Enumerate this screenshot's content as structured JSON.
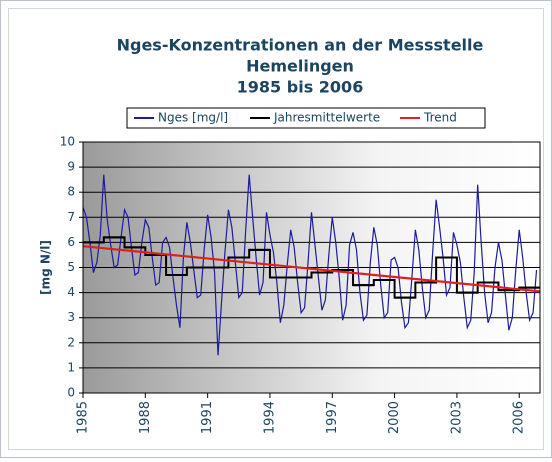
{
  "chart_data": {
    "type": "line",
    "title": [
      "Nges-Konzentrationen an der Messstelle",
      "Hemelingen",
      "1985 bis 2006"
    ],
    "y_label": "[mg N/l]",
    "xlim": [
      1985,
      2007
    ],
    "xticks": [
      1985,
      1988,
      1991,
      1994,
      1997,
      2000,
      2003,
      2006
    ],
    "ylim": [
      0,
      10
    ],
    "yticks": [
      0,
      1,
      2,
      3,
      4,
      5,
      6,
      7,
      8,
      9,
      10
    ],
    "grid": true,
    "legend": "top",
    "series": [
      {
        "name": "Nges [mg/l]",
        "color": "#1c1c9c",
        "x": [
          1985,
          1985.167,
          1985.333,
          1985.5,
          1985.667,
          1985.833,
          1986,
          1986.167,
          1986.333,
          1986.5,
          1986.667,
          1986.833,
          1987,
          1987.167,
          1987.333,
          1987.5,
          1987.667,
          1987.833,
          1988,
          1988.167,
          1988.333,
          1988.5,
          1988.667,
          1988.833,
          1989,
          1989.167,
          1989.333,
          1989.5,
          1989.667,
          1989.833,
          1990,
          1990.167,
          1990.333,
          1990.5,
          1990.667,
          1990.833,
          1991,
          1991.167,
          1991.333,
          1991.5,
          1991.667,
          1991.833,
          1992,
          1992.167,
          1992.333,
          1992.5,
          1992.667,
          1992.833,
          1993,
          1993.167,
          1993.333,
          1993.5,
          1993.667,
          1993.833,
          1994,
          1994.167,
          1994.333,
          1994.5,
          1994.667,
          1994.833,
          1995,
          1995.167,
          1995.333,
          1995.5,
          1995.667,
          1995.833,
          1996,
          1996.167,
          1996.333,
          1996.5,
          1996.667,
          1996.833,
          1997,
          1997.167,
          1997.333,
          1997.5,
          1997.667,
          1997.833,
          1998,
          1998.167,
          1998.333,
          1998.5,
          1998.667,
          1998.833,
          1999,
          1999.167,
          1999.333,
          1999.5,
          1999.667,
          1999.833,
          2000,
          2000.167,
          2000.333,
          2000.5,
          2000.667,
          2000.833,
          2001,
          2001.167,
          2001.333,
          2001.5,
          2001.667,
          2001.833,
          2002,
          2002.167,
          2002.333,
          2002.5,
          2002.667,
          2002.833,
          2003,
          2003.167,
          2003.333,
          2003.5,
          2003.667,
          2003.833,
          2004,
          2004.167,
          2004.333,
          2004.5,
          2004.667,
          2004.833,
          2005,
          2005.167,
          2005.333,
          2005.5,
          2005.667,
          2005.833,
          2006,
          2006.167,
          2006.333,
          2006.5,
          2006.667,
          2006.833
        ],
        "values": [
          7.4,
          7.0,
          6.0,
          4.8,
          5.2,
          6.3,
          8.7,
          6.9,
          5.9,
          5.0,
          5.1,
          6.2,
          7.3,
          7.0,
          5.8,
          4.7,
          4.8,
          6.0,
          6.9,
          6.6,
          5.4,
          4.3,
          4.4,
          6.0,
          6.2,
          5.8,
          4.6,
          3.5,
          2.6,
          5.4,
          6.8,
          6.0,
          4.9,
          3.8,
          3.9,
          5.7,
          7.1,
          6.2,
          4.8,
          1.5,
          3.6,
          5.6,
          7.3,
          6.6,
          5.2,
          3.8,
          4.0,
          6.5,
          8.7,
          7.0,
          5.4,
          3.9,
          4.4,
          7.2,
          6.3,
          5.6,
          4.4,
          2.8,
          3.5,
          5.1,
          6.5,
          5.8,
          4.4,
          3.2,
          3.4,
          5.2,
          7.2,
          5.9,
          4.6,
          3.3,
          3.7,
          5.5,
          7.0,
          6.0,
          4.6,
          2.9,
          3.5,
          5.9,
          6.4,
          5.7,
          4.0,
          2.9,
          3.1,
          5.2,
          6.6,
          5.9,
          4.3,
          3.0,
          3.2,
          5.3,
          5.4,
          5.0,
          3.6,
          2.6,
          2.8,
          4.6,
          6.5,
          5.7,
          4.2,
          3.0,
          3.3,
          5.6,
          7.7,
          6.6,
          5.4,
          3.9,
          4.2,
          6.4,
          5.9,
          5.2,
          3.8,
          2.6,
          2.9,
          4.8,
          8.3,
          6.0,
          4.0,
          2.8,
          3.2,
          5.0,
          6.0,
          5.3,
          3.9,
          2.5,
          3.0,
          4.9,
          6.5,
          5.4,
          4.0,
          2.9,
          3.2,
          4.9
        ]
      },
      {
        "name": "Jahresmittelwerte",
        "color": "#000000",
        "step": true,
        "x": [
          1985,
          1986,
          1987,
          1988,
          1989,
          1990,
          1991,
          1992,
          1993,
          1994,
          1995,
          1996,
          1997,
          1998,
          1999,
          2000,
          2001,
          2002,
          2003,
          2004,
          2005,
          2006
        ],
        "values": [
          6.0,
          6.2,
          5.8,
          5.5,
          4.7,
          5.0,
          5.0,
          5.4,
          5.7,
          4.6,
          4.6,
          4.8,
          4.9,
          4.3,
          4.5,
          3.8,
          4.4,
          5.4,
          4.0,
          4.4,
          4.1,
          4.2
        ]
      },
      {
        "name": "Trend",
        "color": "#e02020",
        "x": [
          1985,
          2007
        ],
        "values": [
          5.85,
          4.05
        ]
      }
    ]
  }
}
